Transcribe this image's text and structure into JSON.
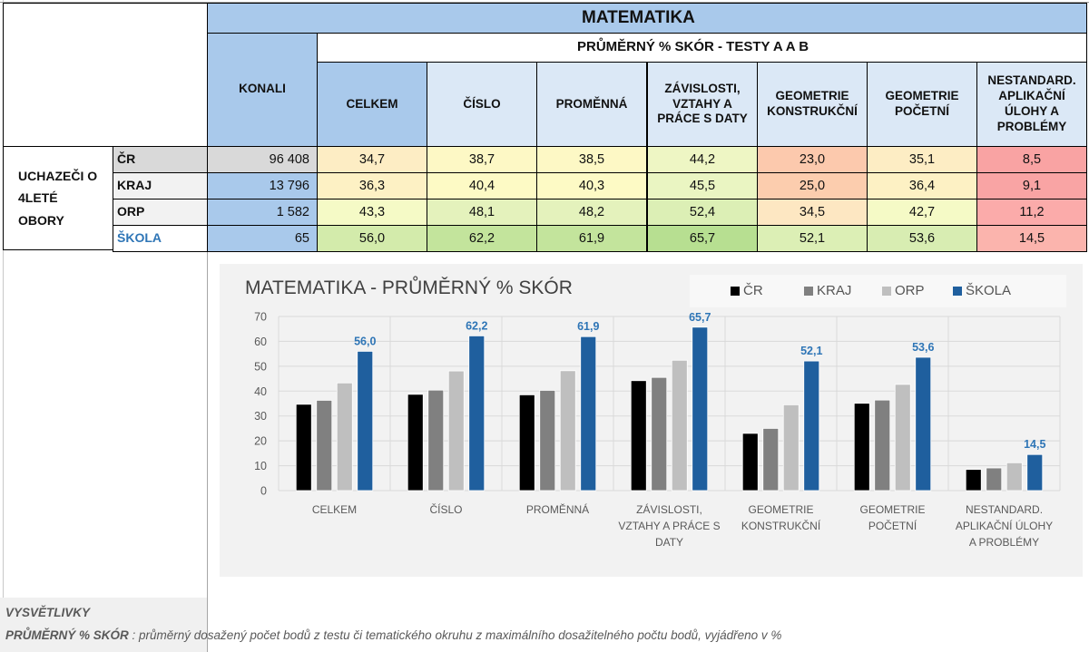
{
  "table": {
    "title": "MATEMATIKA",
    "subtitle": "PRŮMĚRNÝ % SKÓR - TESTY A A B",
    "konali_header": "KONALI",
    "group_label": "UCHAZEČI O 4LETÉ OBORY",
    "group_label_lines": [
      "UCHAZEČI O",
      "4LETÉ",
      "OBORY"
    ],
    "columns": [
      {
        "lines": [
          "CELKEM"
        ]
      },
      {
        "lines": [
          "ČÍSLO"
        ]
      },
      {
        "lines": [
          "PROMĚNNÁ"
        ]
      },
      {
        "lines": [
          "ZÁVISLOSTI,",
          "VZTAHY A",
          "PRÁCE S DATY"
        ]
      },
      {
        "lines": [
          "GEOMETRIE",
          "KONSTRUKČNÍ"
        ]
      },
      {
        "lines": [
          "GEOMETRIE",
          "POČETNÍ"
        ]
      },
      {
        "lines": [
          "NESTANDARD.",
          "APLIKAČNÍ",
          "ÚLOHY A",
          "PROBLÉMY"
        ]
      }
    ],
    "rows": [
      {
        "label": "ČR",
        "konali": "96 408",
        "values": [
          "34,7",
          "38,7",
          "38,5",
          "44,2",
          "23,0",
          "35,1",
          "8,5"
        ],
        "colors": [
          "#fdedc4",
          "#fdf8c5",
          "#fdf8c5",
          "#eef6c4",
          "#fcc9ad",
          "#fdedc4",
          "#f9a3a3"
        ]
      },
      {
        "label": "KRAJ",
        "konali": "13 796",
        "values": [
          "36,3",
          "40,4",
          "40,3",
          "45,5",
          "25,0",
          "36,4",
          "9,1"
        ],
        "colors": [
          "#fdf1c4",
          "#fdfac5",
          "#fdfac5",
          "#eaf5c2",
          "#fccdae",
          "#fdf1c4",
          "#f9a4a4"
        ]
      },
      {
        "label": "ORP",
        "konali": "1 582",
        "values": [
          "43,3",
          "48,1",
          "48,2",
          "52,4",
          "34,5",
          "42,7",
          "11,2"
        ],
        "colors": [
          "#f5fac6",
          "#e4f2bc",
          "#e4f2bc",
          "#dcefb5",
          "#fde7c2",
          "#f5fac6",
          "#fbabaa"
        ]
      },
      {
        "label": "ŠKOLA",
        "konali": "65",
        "values": [
          "56,0",
          "62,2",
          "61,9",
          "65,7",
          "52,1",
          "53,6",
          "14,5"
        ],
        "colors": [
          "#d3ebab",
          "#c3e49c",
          "#c3e49c",
          "#b7df91",
          "#dcefb5",
          "#d8edb2",
          "#fbb4ad"
        ]
      }
    ],
    "row_label_colors": [
      "#d9d9d9",
      "#f2f2f2",
      "#f2f2f2",
      "#ffffff"
    ],
    "konali_colors": [
      "#d9d9d9",
      "#a9c9eb",
      "#a9c9eb",
      "#a9c9eb"
    ],
    "skola_label_color": "#2e75b6"
  },
  "chart_data": {
    "type": "bar",
    "title": "MATEMATIKA - PRŮMĚRNÝ % SKÓR",
    "categories": [
      [
        "CELKEM"
      ],
      [
        "ČÍSLO"
      ],
      [
        "PROMĚNNÁ"
      ],
      [
        "ZÁVISLOSTI,",
        "VZTAHY A PRÁCE S",
        "DATY"
      ],
      [
        "GEOMETRIE",
        "KONSTRUKČNÍ"
      ],
      [
        "GEOMETRIE",
        "POČETNÍ"
      ],
      [
        "NESTANDARD.",
        "APLIKAČNÍ ÚLOHY",
        "A PROBLÉMY"
      ]
    ],
    "series": [
      {
        "name": "ČR",
        "color": "#000000",
        "values": [
          34.7,
          38.7,
          38.5,
          44.2,
          23.0,
          35.1,
          8.5
        ]
      },
      {
        "name": "KRAJ",
        "color": "#808080",
        "values": [
          36.3,
          40.4,
          40.3,
          45.5,
          25.0,
          36.4,
          9.1
        ]
      },
      {
        "name": "ORP",
        "color": "#bfbfbf",
        "values": [
          43.3,
          48.1,
          48.2,
          52.4,
          34.5,
          42.7,
          11.2
        ]
      },
      {
        "name": "ŠKOLA",
        "color": "#1f5f9e",
        "values": [
          56.0,
          62.2,
          61.9,
          65.7,
          52.1,
          53.6,
          14.5
        ],
        "labels": [
          "56,0",
          "62,2",
          "61,9",
          "65,7",
          "52,1",
          "53,6",
          "14,5"
        ]
      }
    ],
    "yticks": [
      0,
      10,
      20,
      30,
      40,
      50,
      60,
      70
    ],
    "ylim": [
      0,
      70
    ],
    "xlabel": "",
    "ylabel": "",
    "grid": true,
    "legend": "top-right",
    "data_label_color": "#2e75b6"
  },
  "footer": {
    "title": "VYSVĚTLIVKY",
    "term": "PRŮMĚRNÝ % SKÓR",
    "definition": " : průměrný dosažený počet bodů z testu či tematického okruhu z maximálního dosažitelného počtu bodů, vyjádřeno v %"
  }
}
